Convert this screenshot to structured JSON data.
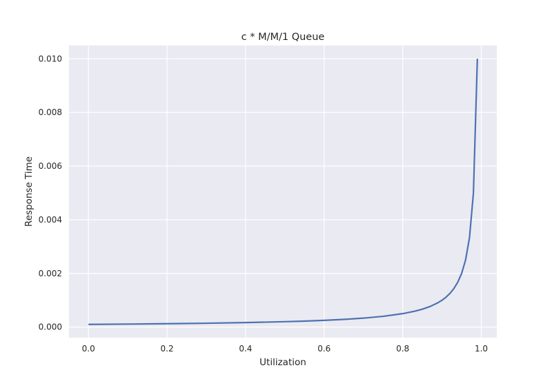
{
  "chart_data": {
    "type": "line",
    "title": "c * M/M/1 Queue",
    "xlabel": "Utilization",
    "ylabel": "Response Time",
    "xlim": [
      -0.0495,
      1.0395
    ],
    "ylim": [
      -0.000395,
      0.010495
    ],
    "xticks": [
      0.0,
      0.2,
      0.4,
      0.6,
      0.8,
      1.0
    ],
    "xtick_labels": [
      "0.0",
      "0.2",
      "0.4",
      "0.6",
      "0.8",
      "1.0"
    ],
    "yticks": [
      0.0,
      0.002,
      0.004,
      0.006,
      0.008,
      0.01
    ],
    "ytick_labels": [
      "0.000",
      "0.002",
      "0.004",
      "0.006",
      "0.008",
      "0.010"
    ],
    "grid": true,
    "background_color": "#eaeaf2",
    "series": [
      {
        "color": "#4c72b0",
        "x": [
          0.0,
          0.1,
          0.2,
          0.3,
          0.4,
          0.5,
          0.55,
          0.6,
          0.65,
          0.7,
          0.75,
          0.8,
          0.83,
          0.85,
          0.87,
          0.89,
          0.9,
          0.91,
          0.92,
          0.93,
          0.94,
          0.95,
          0.96,
          0.97,
          0.98,
          0.99
        ],
        "y": [
          0.0001,
          0.000111,
          0.000125,
          0.000143,
          0.000167,
          0.0002,
          0.000222,
          0.00025,
          0.000286,
          0.000333,
          0.0004,
          0.0005,
          0.000588,
          0.000667,
          0.000769,
          0.000909,
          0.001,
          0.001111,
          0.00125,
          0.001429,
          0.001667,
          0.002,
          0.0025,
          0.003333,
          0.005,
          0.01
        ]
      }
    ]
  }
}
